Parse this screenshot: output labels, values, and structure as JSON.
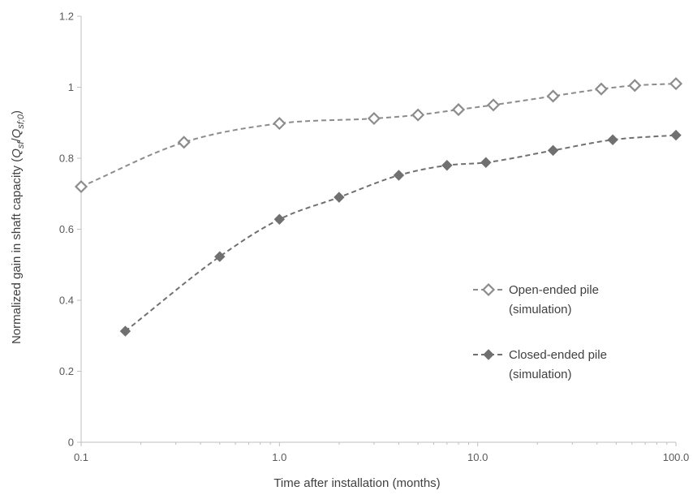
{
  "chart_data": {
    "type": "line",
    "xscale": "log",
    "xlim": [
      0.1,
      100.0
    ],
    "ylim": [
      0,
      1.2
    ],
    "x_ticks": [
      0.1,
      1.0,
      10.0,
      100.0
    ],
    "x_tick_labels": [
      "0.1",
      "1.0",
      "10.0",
      "100.0"
    ],
    "y_ticks": [
      0,
      0.2,
      0.4,
      0.6,
      0.8,
      1,
      1.2
    ],
    "y_tick_labels": [
      "0",
      "0.2",
      "0.4",
      "0.6",
      "0.8",
      "1",
      "1.2"
    ],
    "xlabel": "Time after installation (months)",
    "ylabel": {
      "prefix": "Normalized gain in shaft capacity (",
      "q1": "Q",
      "q1_sub": "sf",
      "slash": "/",
      "q2": "Q",
      "q2_sub": "sf;0",
      "suffix": ")"
    },
    "grid": false,
    "legend_position": "right",
    "series": [
      {
        "name_line1": "Open-ended pile",
        "name_line2": "(simulation)",
        "marker": "diamond-open",
        "color": "#8c8c8c",
        "x": [
          0.1,
          0.33,
          1.0,
          3.0,
          5.0,
          8.0,
          12.0,
          24.0,
          42.0,
          62.0,
          100.0
        ],
        "y": [
          0.72,
          0.845,
          0.898,
          0.912,
          0.922,
          0.937,
          0.95,
          0.975,
          0.995,
          1.005,
          1.01
        ]
      },
      {
        "name_line1": "Closed-ended pile",
        "name_line2": "(simulation)",
        "marker": "diamond-filled",
        "color": "#707070",
        "x": [
          0.167,
          0.5,
          1.0,
          2.0,
          4.0,
          7.0,
          11.0,
          24.0,
          48.0,
          100.0
        ],
        "y": [
          0.313,
          0.523,
          0.628,
          0.69,
          0.752,
          0.78,
          0.788,
          0.822,
          0.852,
          0.865
        ]
      }
    ]
  }
}
